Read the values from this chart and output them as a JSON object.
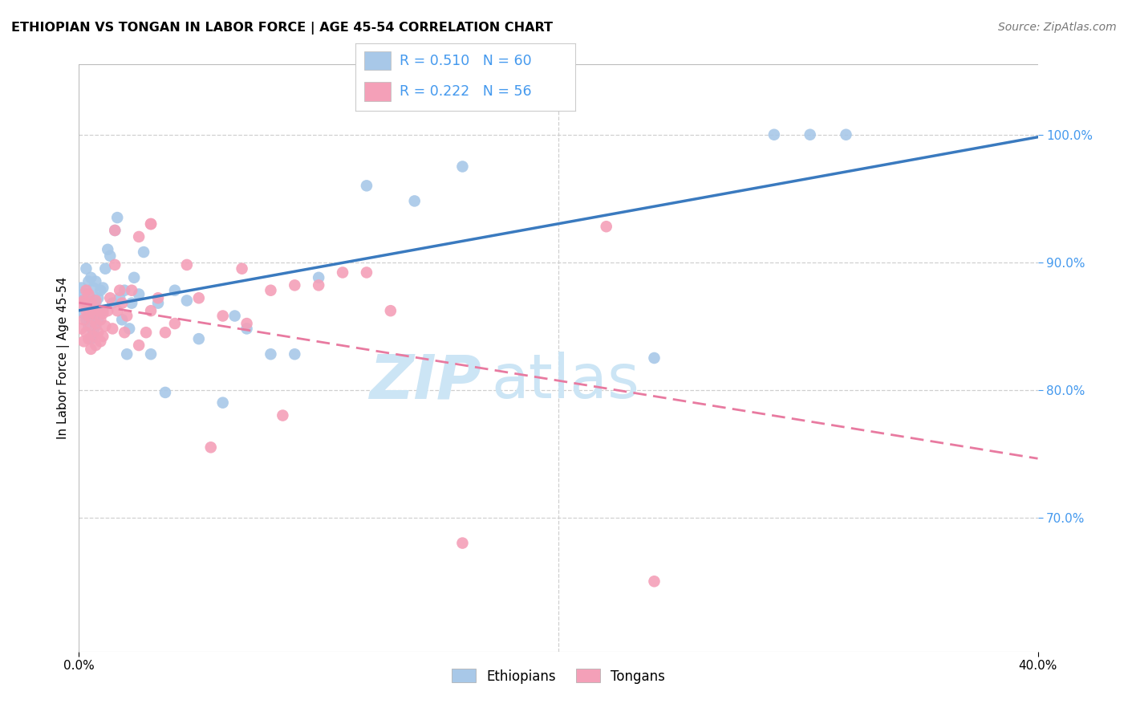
{
  "title": "ETHIOPIAN VS TONGAN IN LABOR FORCE | AGE 45-54 CORRELATION CHART",
  "source": "Source: ZipAtlas.com",
  "ylabel": "In Labor Force | Age 45-54",
  "x_min": 0.0,
  "x_max": 0.4,
  "y_min": 0.595,
  "y_max": 1.055,
  "blue_R": 0.51,
  "blue_N": 60,
  "pink_R": 0.222,
  "pink_N": 56,
  "blue_color": "#a8c8e8",
  "pink_color": "#f4a0b8",
  "blue_line_color": "#3a7abf",
  "pink_line_color": "#e87aa0",
  "grid_color": "#d0d0d0",
  "background_color": "#ffffff",
  "watermark_zip": "ZIP",
  "watermark_atlas": "atlas",
  "legend_label_blue": "Ethiopians",
  "legend_label_pink": "Tongans",
  "blue_scatter_x": [
    0.001,
    0.001,
    0.002,
    0.002,
    0.003,
    0.003,
    0.003,
    0.004,
    0.004,
    0.004,
    0.005,
    0.005,
    0.005,
    0.005,
    0.006,
    0.006,
    0.006,
    0.007,
    0.007,
    0.007,
    0.008,
    0.008,
    0.009,
    0.009,
    0.01,
    0.01,
    0.011,
    0.012,
    0.013,
    0.014,
    0.015,
    0.016,
    0.017,
    0.018,
    0.019,
    0.02,
    0.021,
    0.022,
    0.023,
    0.025,
    0.027,
    0.03,
    0.033,
    0.036,
    0.04,
    0.045,
    0.05,
    0.06,
    0.065,
    0.07,
    0.08,
    0.09,
    0.1,
    0.12,
    0.14,
    0.16,
    0.24,
    0.29,
    0.305,
    0.32
  ],
  "blue_scatter_y": [
    0.87,
    0.88,
    0.86,
    0.875,
    0.855,
    0.87,
    0.895,
    0.85,
    0.865,
    0.885,
    0.84,
    0.858,
    0.872,
    0.888,
    0.845,
    0.862,
    0.88,
    0.85,
    0.868,
    0.885,
    0.855,
    0.872,
    0.86,
    0.878,
    0.862,
    0.88,
    0.895,
    0.91,
    0.905,
    0.868,
    0.925,
    0.935,
    0.872,
    0.855,
    0.878,
    0.828,
    0.848,
    0.868,
    0.888,
    0.875,
    0.908,
    0.828,
    0.868,
    0.798,
    0.878,
    0.87,
    0.84,
    0.79,
    0.858,
    0.848,
    0.828,
    0.828,
    0.888,
    0.96,
    0.948,
    0.975,
    0.825,
    1.0,
    1.0,
    1.0
  ],
  "pink_scatter_x": [
    0.001,
    0.001,
    0.002,
    0.002,
    0.002,
    0.003,
    0.003,
    0.003,
    0.004,
    0.004,
    0.004,
    0.005,
    0.005,
    0.005,
    0.006,
    0.006,
    0.007,
    0.007,
    0.007,
    0.008,
    0.008,
    0.009,
    0.009,
    0.01,
    0.01,
    0.011,
    0.012,
    0.013,
    0.014,
    0.015,
    0.016,
    0.017,
    0.018,
    0.019,
    0.02,
    0.022,
    0.025,
    0.028,
    0.03,
    0.033,
    0.036,
    0.04,
    0.045,
    0.05,
    0.06,
    0.07,
    0.08,
    0.09,
    0.1,
    0.11,
    0.12,
    0.13,
    0.025,
    0.03,
    0.068,
    0.22
  ],
  "pink_scatter_y": [
    0.848,
    0.868,
    0.838,
    0.855,
    0.87,
    0.845,
    0.862,
    0.878,
    0.84,
    0.858,
    0.875,
    0.832,
    0.85,
    0.868,
    0.842,
    0.86,
    0.835,
    0.852,
    0.87,
    0.845,
    0.862,
    0.838,
    0.855,
    0.842,
    0.86,
    0.85,
    0.862,
    0.872,
    0.848,
    0.898,
    0.862,
    0.878,
    0.868,
    0.845,
    0.858,
    0.878,
    0.835,
    0.845,
    0.862,
    0.872,
    0.845,
    0.852,
    0.898,
    0.872,
    0.858,
    0.852,
    0.878,
    0.882,
    0.882,
    0.892,
    0.892,
    0.862,
    0.92,
    0.93,
    0.895,
    0.928
  ],
  "pink_outlier_x": [
    0.015,
    0.03,
    0.055,
    0.085,
    0.16,
    0.24
  ],
  "pink_outlier_y": [
    0.925,
    0.93,
    0.755,
    0.78,
    0.68,
    0.65
  ],
  "title_fontsize": 11.5,
  "axis_label_fontsize": 11,
  "tick_fontsize": 11,
  "source_fontsize": 10,
  "watermark_fontsize_zip": 55,
  "watermark_fontsize_atlas": 55,
  "watermark_color": "#cce5f5",
  "right_tick_color": "#4499ee"
}
